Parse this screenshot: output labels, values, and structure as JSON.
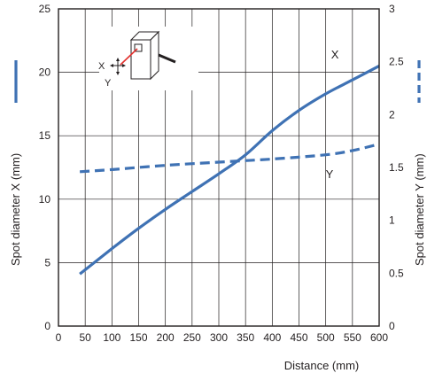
{
  "chart_data": {
    "type": "line",
    "xlabel": "Distance (mm)",
    "ylabel_left": "Spot diameter X (mm)",
    "ylabel_right": "Spot diameter Y (mm)",
    "xlim": [
      0,
      600
    ],
    "ylim_left": [
      0,
      25
    ],
    "ylim_right": [
      0,
      3
    ],
    "x_ticks": [
      0,
      50,
      100,
      150,
      200,
      250,
      300,
      350,
      400,
      450,
      500,
      550,
      600
    ],
    "y_left_ticks": [
      0,
      5,
      10,
      15,
      20,
      25
    ],
    "y_right_ticks": [
      0,
      0.5,
      1,
      1.5,
      2,
      2.5,
      3
    ],
    "y_right_tick_labels": [
      "0",
      "0.5",
      "1",
      "1.5",
      "2",
      "2.5",
      "3"
    ],
    "grid": true,
    "series": [
      {
        "name": "X",
        "axis": "left",
        "style": "solid",
        "color": "#3f72b4",
        "x": [
          40,
          100,
          150,
          200,
          250,
          300,
          350,
          400,
          450,
          500,
          550,
          600
        ],
        "y": [
          4.1,
          6.1,
          7.7,
          9.2,
          10.6,
          12.0,
          13.5,
          15.4,
          17.0,
          18.3,
          19.4,
          20.5
        ]
      },
      {
        "name": "Y",
        "axis": "right",
        "style": "dashed",
        "color": "#3f72b4",
        "x": [
          40,
          100,
          200,
          300,
          400,
          500,
          550,
          600
        ],
        "y": [
          1.46,
          1.48,
          1.52,
          1.55,
          1.58,
          1.62,
          1.66,
          1.72
        ]
      }
    ],
    "annotations": {
      "inset_x_label": "X",
      "inset_y_label": "Y"
    }
  }
}
